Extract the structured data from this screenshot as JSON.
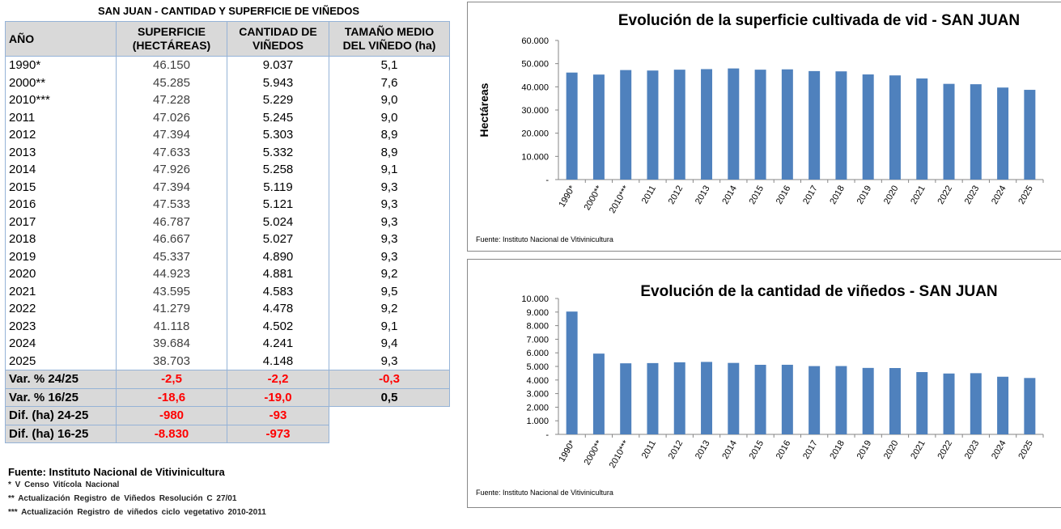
{
  "table": {
    "title": "SAN JUAN  - CANTIDAD Y SUPERFICIE DE  VIÑEDOS",
    "headers": {
      "col1": "AÑO",
      "col2_line1": "SUPERFICIE",
      "col2_line2": "(HECTÁREAS)",
      "col3_line1": "CANTIDAD  DE",
      "col3_line2": "VIÑEDOS",
      "col4_line1": "TAMAÑO MEDIO",
      "col4_line2": "DEL VIÑEDO (ha)"
    },
    "rows": [
      {
        "year": "1990*",
        "sup": "46.150",
        "cant": "9.037",
        "tam": "5,1"
      },
      {
        "year": "2000**",
        "sup": "45.285",
        "cant": "5.943",
        "tam": "7,6"
      },
      {
        "year": "2010***",
        "sup": "47.228",
        "cant": "5.229",
        "tam": "9,0"
      },
      {
        "year": "2011",
        "sup": "47.026",
        "cant": "5.245",
        "tam": "9,0"
      },
      {
        "year": "2012",
        "sup": "47.394",
        "cant": "5.303",
        "tam": "8,9"
      },
      {
        "year": "2013",
        "sup": "47.633",
        "cant": "5.332",
        "tam": "8,9"
      },
      {
        "year": "2014",
        "sup": "47.926",
        "cant": "5.258",
        "tam": "9,1"
      },
      {
        "year": "2015",
        "sup": "47.394",
        "cant": "5.119",
        "tam": "9,3"
      },
      {
        "year": "2016",
        "sup": "47.533",
        "cant": "5.121",
        "tam": "9,3"
      },
      {
        "year": "2017",
        "sup": "46.787",
        "cant": "5.024",
        "tam": "9,3"
      },
      {
        "year": "2018",
        "sup": "46.667",
        "cant": "5.027",
        "tam": "9,3"
      },
      {
        "year": "2019",
        "sup": "45.337",
        "cant": "4.890",
        "tam": "9,3"
      },
      {
        "year": "2020",
        "sup": "44.923",
        "cant": "4.881",
        "tam": "9,2"
      },
      {
        "year": "2021",
        "sup": "43.595",
        "cant": "4.583",
        "tam": "9,5"
      },
      {
        "year": "2022",
        "sup": "41.279",
        "cant": "4.478",
        "tam": "9,2"
      },
      {
        "year": "2023",
        "sup": "41.118",
        "cant": "4.502",
        "tam": "9,1"
      },
      {
        "year": "2024",
        "sup": "39.684",
        "cant": "4.241",
        "tam": "9,4"
      },
      {
        "year": "2025",
        "sup": "38.703",
        "cant": "4.148",
        "tam": "9,3"
      }
    ],
    "summary": [
      {
        "label": "Var. % 24/25",
        "sup": "-2,5",
        "cant": "-2,2",
        "tam": "-0,3"
      },
      {
        "label": "Var. % 16/25",
        "sup": "-18,6",
        "cant": "-19,0",
        "tam": "0,5"
      },
      {
        "label": "Dif. (ha) 24-25",
        "sup": "-980",
        "cant": "-93"
      },
      {
        "label": "Dif. (ha) 16-25",
        "sup": "-8.830",
        "cant": "-973"
      }
    ],
    "source": "Fuente: Instituto Nacional de Vitivinicultura",
    "notes": [
      "* V Censo Vitícola Nacional",
      "** Actualización  Registro de Viñedos Resolución  C 27/01",
      "*** Actualización  Registro de viñedos ciclo vegetativo  2010-2011"
    ]
  },
  "colors": {
    "bar": "#4f81bd",
    "negative": "#ff0000",
    "header_bg": "#d9d9d9",
    "grid_border": "#95b3d7"
  },
  "chart_data": [
    {
      "type": "bar",
      "title": "Evolución de la superficie cultivada de vid - SAN JUAN",
      "xlabel": "",
      "ylabel": "Hectáreas",
      "categories": [
        "1990*",
        "2000**",
        "2010***",
        "2011",
        "2012",
        "2013",
        "2014",
        "2015",
        "2016",
        "2017",
        "2018",
        "2019",
        "2020",
        "2021",
        "2022",
        "2023",
        "2024",
        "2025"
      ],
      "values": [
        46150,
        45285,
        47228,
        47026,
        47394,
        47633,
        47926,
        47394,
        47533,
        46787,
        46667,
        45337,
        44923,
        43595,
        41279,
        41118,
        39684,
        38703
      ],
      "ylim": [
        0,
        60000
      ],
      "yticks": [
        "-",
        "10.000",
        "20.000",
        "30.000",
        "40.000",
        "50.000",
        "60.000"
      ],
      "grid": false,
      "legend": "none",
      "source": "Fuente: Instituto Nacional de Vitivinicultura"
    },
    {
      "type": "bar",
      "title": "Evolución de la cantidad de viñedos - SAN JUAN",
      "xlabel": "",
      "ylabel": "",
      "categories": [
        "1990*",
        "2000**",
        "2010***",
        "2011",
        "2012",
        "2013",
        "2014",
        "2015",
        "2016",
        "2017",
        "2018",
        "2019",
        "2020",
        "2021",
        "2022",
        "2023",
        "2024",
        "2025"
      ],
      "values": [
        9037,
        5943,
        5229,
        5245,
        5303,
        5332,
        5258,
        5119,
        5121,
        5024,
        5027,
        4890,
        4881,
        4583,
        4478,
        4502,
        4241,
        4148
      ],
      "ylim": [
        0,
        10000
      ],
      "yticks": [
        "-",
        "1.000",
        "2.000",
        "3.000",
        "4.000",
        "5.000",
        "6.000",
        "7.000",
        "8.000",
        "9.000",
        "10.000"
      ],
      "grid": false,
      "legend": "none",
      "source": "Fuente: Instituto Nacional de Vitivinicultura"
    }
  ]
}
